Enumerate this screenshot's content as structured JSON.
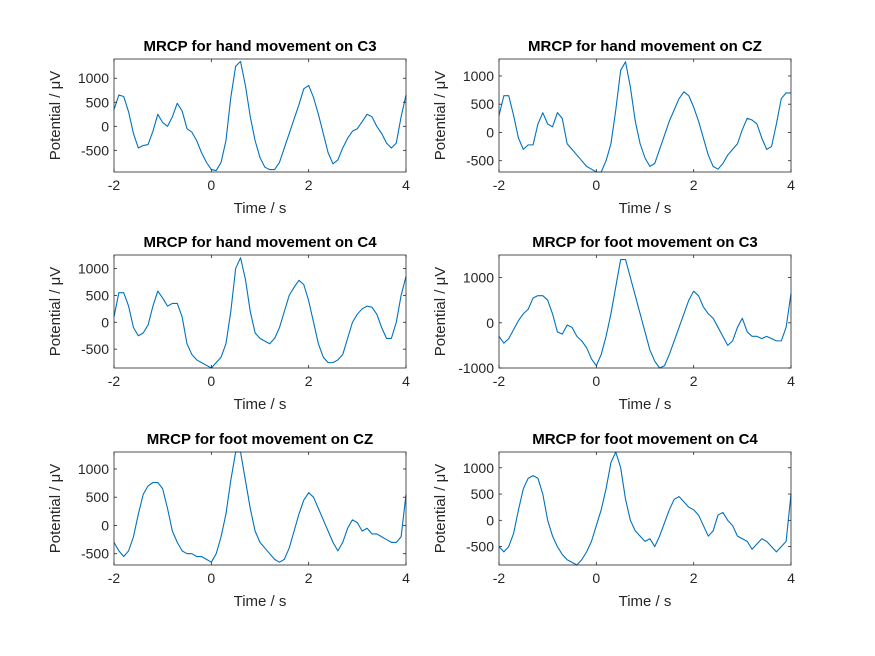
{
  "figure": {
    "background": "#ffffff",
    "line_color": "#0072bd",
    "axis_color": "#262626"
  },
  "chart_data": [
    {
      "type": "line",
      "title": "MRCP for hand movement on C3",
      "xlabel": "Time / s",
      "ylabel": "Potential / μV",
      "xlim": [
        -2,
        4
      ],
      "ylim": [
        -950,
        1400
      ],
      "xticks": [
        -2,
        0,
        2,
        4
      ],
      "yticks": [
        -500,
        0,
        500,
        1000
      ],
      "series": [
        {
          "x": [
            -2,
            -1.9,
            -1.8,
            -1.7,
            -1.6,
            -1.5,
            -1.4,
            -1.3,
            -1.2,
            -1.1,
            -1.0,
            -0.9,
            -0.8,
            -0.7,
            -0.6,
            -0.5,
            -0.4,
            -0.3,
            -0.2,
            -0.1,
            0,
            0.1,
            0.2,
            0.3,
            0.4,
            0.5,
            0.6,
            0.7,
            0.8,
            0.9,
            1.0,
            1.1,
            1.2,
            1.3,
            1.4,
            1.5,
            1.6,
            1.7,
            1.8,
            1.9,
            2.0,
            2.1,
            2.2,
            2.3,
            2.4,
            2.5,
            2.6,
            2.7,
            2.8,
            2.9,
            3.0,
            3.1,
            3.2,
            3.3,
            3.4,
            3.5,
            3.6,
            3.7,
            3.8,
            3.9,
            4.0
          ],
          "y": [
            350,
            650,
            620,
            300,
            -150,
            -450,
            -400,
            -380,
            -100,
            250,
            80,
            0,
            200,
            480,
            320,
            -50,
            -120,
            -300,
            -550,
            -750,
            -900,
            -920,
            -750,
            -300,
            600,
            1250,
            1350,
            850,
            200,
            -300,
            -650,
            -850,
            -900,
            -900,
            -750,
            -450,
            -150,
            150,
            450,
            780,
            850,
            600,
            250,
            -150,
            -550,
            -780,
            -700,
            -450,
            -250,
            -100,
            -50,
            100,
            250,
            200,
            0,
            -150,
            -350,
            -450,
            -350,
            200,
            650
          ]
        }
      ]
    },
    {
      "type": "line",
      "title": "MRCP for hand movement on CZ",
      "xlabel": "Time / s",
      "ylabel": "Potential / μV",
      "xlim": [
        -2,
        4
      ],
      "ylim": [
        -700,
        1300
      ],
      "xticks": [
        -2,
        0,
        2,
        4
      ],
      "yticks": [
        -500,
        0,
        500,
        1000
      ],
      "series": [
        {
          "x": [
            -2,
            -1.9,
            -1.8,
            -1.7,
            -1.6,
            -1.5,
            -1.4,
            -1.3,
            -1.2,
            -1.1,
            -1.0,
            -0.9,
            -0.8,
            -0.7,
            -0.6,
            -0.5,
            -0.4,
            -0.3,
            -0.2,
            -0.1,
            0,
            0.1,
            0.2,
            0.3,
            0.4,
            0.5,
            0.6,
            0.7,
            0.8,
            0.9,
            1.0,
            1.1,
            1.2,
            1.3,
            1.4,
            1.5,
            1.6,
            1.7,
            1.8,
            1.9,
            2.0,
            2.1,
            2.2,
            2.3,
            2.4,
            2.5,
            2.6,
            2.7,
            2.8,
            2.9,
            3.0,
            3.1,
            3.2,
            3.3,
            3.4,
            3.5,
            3.6,
            3.7,
            3.8,
            3.9,
            4.0
          ],
          "y": [
            300,
            650,
            650,
            300,
            -100,
            -300,
            -220,
            -220,
            150,
            350,
            150,
            100,
            350,
            250,
            -200,
            -300,
            -400,
            -500,
            -600,
            -650,
            -700,
            -700,
            -500,
            -200,
            400,
            1100,
            1250,
            800,
            200,
            -200,
            -450,
            -600,
            -550,
            -300,
            -50,
            200,
            400,
            600,
            720,
            650,
            450,
            200,
            -100,
            -400,
            -600,
            -650,
            -550,
            -400,
            -300,
            -200,
            50,
            250,
            220,
            150,
            -100,
            -300,
            -250,
            150,
            600,
            700,
            700
          ]
        }
      ]
    },
    {
      "type": "line",
      "title": "MRCP for hand movement on C4",
      "xlabel": "Time / s",
      "ylabel": "Potential / μV",
      "xlim": [
        -2,
        4
      ],
      "ylim": [
        -850,
        1250
      ],
      "xticks": [
        -2,
        0,
        2,
        4
      ],
      "yticks": [
        -500,
        0,
        500,
        1000
      ],
      "series": [
        {
          "x": [
            -2,
            -1.9,
            -1.8,
            -1.7,
            -1.6,
            -1.5,
            -1.4,
            -1.3,
            -1.2,
            -1.1,
            -1.0,
            -0.9,
            -0.8,
            -0.7,
            -0.6,
            -0.5,
            -0.4,
            -0.3,
            -0.2,
            -0.1,
            0,
            0.1,
            0.2,
            0.3,
            0.4,
            0.5,
            0.6,
            0.7,
            0.8,
            0.9,
            1.0,
            1.1,
            1.2,
            1.3,
            1.4,
            1.5,
            1.6,
            1.7,
            1.8,
            1.9,
            2.0,
            2.1,
            2.2,
            2.3,
            2.4,
            2.5,
            2.6,
            2.7,
            2.8,
            2.9,
            3.0,
            3.1,
            3.2,
            3.3,
            3.4,
            3.5,
            3.6,
            3.7,
            3.8,
            3.9,
            4.0
          ],
          "y": [
            100,
            550,
            550,
            300,
            -100,
            -250,
            -200,
            -50,
            300,
            580,
            450,
            300,
            350,
            350,
            100,
            -400,
            -600,
            -700,
            -750,
            -800,
            -850,
            -750,
            -650,
            -400,
            200,
            1000,
            1200,
            800,
            200,
            -200,
            -300,
            -350,
            -400,
            -300,
            -100,
            200,
            500,
            650,
            780,
            700,
            400,
            0,
            -400,
            -650,
            -750,
            -750,
            -700,
            -600,
            -300,
            0,
            150,
            250,
            300,
            280,
            150,
            -100,
            -300,
            -300,
            0,
            500,
            850
          ]
        }
      ]
    },
    {
      "type": "line",
      "title": "MRCP for foot movement on C3",
      "xlabel": "Time / s",
      "ylabel": "Potential / μV",
      "xlim": [
        -2,
        4
      ],
      "ylim": [
        -1000,
        1500
      ],
      "xticks": [
        -2,
        0,
        2,
        4
      ],
      "yticks": [
        -1000,
        0,
        1000
      ],
      "series": [
        {
          "x": [
            -2,
            -1.9,
            -1.8,
            -1.7,
            -1.6,
            -1.5,
            -1.4,
            -1.3,
            -1.2,
            -1.1,
            -1.0,
            -0.9,
            -0.8,
            -0.7,
            -0.6,
            -0.5,
            -0.4,
            -0.3,
            -0.2,
            -0.1,
            0,
            0.1,
            0.2,
            0.3,
            0.4,
            0.5,
            0.6,
            0.7,
            0.8,
            0.9,
            1.0,
            1.1,
            1.2,
            1.3,
            1.4,
            1.5,
            1.6,
            1.7,
            1.8,
            1.9,
            2.0,
            2.1,
            2.2,
            2.3,
            2.4,
            2.5,
            2.6,
            2.7,
            2.8,
            2.9,
            3.0,
            3.1,
            3.2,
            3.3,
            3.4,
            3.5,
            3.6,
            3.7,
            3.8,
            3.9,
            4.0
          ],
          "y": [
            -300,
            -450,
            -350,
            -150,
            50,
            200,
            300,
            550,
            600,
            600,
            500,
            200,
            -200,
            -250,
            -50,
            -100,
            -300,
            -400,
            -550,
            -800,
            -950,
            -700,
            -300,
            200,
            800,
            1400,
            1400,
            1000,
            600,
            200,
            -200,
            -600,
            -850,
            -1000,
            -950,
            -700,
            -400,
            -100,
            200,
            500,
            700,
            600,
            350,
            200,
            100,
            -100,
            -300,
            -500,
            -400,
            -100,
            100,
            -200,
            -300,
            -300,
            -350,
            -300,
            -350,
            -400,
            -400,
            -100,
            650
          ]
        }
      ]
    },
    {
      "type": "line",
      "title": "MRCP for foot movement on CZ",
      "xlabel": "Time / s",
      "ylabel": "Potential / μV",
      "xlim": [
        -2,
        4
      ],
      "ylim": [
        -700,
        1300
      ],
      "xticks": [
        -2,
        0,
        2,
        4
      ],
      "yticks": [
        -500,
        0,
        500,
        1000
      ],
      "series": [
        {
          "x": [
            -2,
            -1.9,
            -1.8,
            -1.7,
            -1.6,
            -1.5,
            -1.4,
            -1.3,
            -1.2,
            -1.1,
            -1.0,
            -0.9,
            -0.8,
            -0.7,
            -0.6,
            -0.5,
            -0.4,
            -0.3,
            -0.2,
            -0.1,
            0,
            0.1,
            0.2,
            0.3,
            0.4,
            0.5,
            0.6,
            0.7,
            0.8,
            0.9,
            1.0,
            1.1,
            1.2,
            1.3,
            1.4,
            1.5,
            1.6,
            1.7,
            1.8,
            1.9,
            2.0,
            2.1,
            2.2,
            2.3,
            2.4,
            2.5,
            2.6,
            2.7,
            2.8,
            2.9,
            3.0,
            3.1,
            3.2,
            3.3,
            3.4,
            3.5,
            3.6,
            3.7,
            3.8,
            3.9,
            4.0
          ],
          "y": [
            -300,
            -450,
            -550,
            -450,
            -200,
            200,
            550,
            700,
            760,
            760,
            650,
            300,
            -100,
            -300,
            -450,
            -500,
            -500,
            -550,
            -550,
            -600,
            -650,
            -500,
            -200,
            200,
            800,
            1300,
            1300,
            800,
            300,
            -100,
            -300,
            -400,
            -500,
            -600,
            -650,
            -600,
            -400,
            -100,
            200,
            450,
            580,
            500,
            300,
            100,
            -100,
            -300,
            -450,
            -300,
            -50,
            100,
            50,
            -100,
            -50,
            -150,
            -150,
            -200,
            -250,
            -300,
            -300,
            -200,
            550
          ]
        }
      ]
    },
    {
      "type": "line",
      "title": "MRCP for foot movement on C4",
      "xlabel": "Time / s",
      "ylabel": "Potential / μV",
      "xlim": [
        -2,
        4
      ],
      "ylim": [
        -850,
        1300
      ],
      "xticks": [
        -2,
        0,
        2,
        4
      ],
      "yticks": [
        -500,
        0,
        500,
        1000
      ],
      "series": [
        {
          "x": [
            -2,
            -1.9,
            -1.8,
            -1.7,
            -1.6,
            -1.5,
            -1.4,
            -1.3,
            -1.2,
            -1.1,
            -1.0,
            -0.9,
            -0.8,
            -0.7,
            -0.6,
            -0.5,
            -0.4,
            -0.3,
            -0.2,
            -0.1,
            0,
            0.1,
            0.2,
            0.3,
            0.4,
            0.5,
            0.6,
            0.7,
            0.8,
            0.9,
            1.0,
            1.1,
            1.2,
            1.3,
            1.4,
            1.5,
            1.6,
            1.7,
            1.8,
            1.9,
            2.0,
            2.1,
            2.2,
            2.3,
            2.4,
            2.5,
            2.6,
            2.7,
            2.8,
            2.9,
            3.0,
            3.1,
            3.2,
            3.3,
            3.4,
            3.5,
            3.6,
            3.7,
            3.8,
            3.9,
            4.0
          ],
          "y": [
            -500,
            -600,
            -500,
            -250,
            200,
            600,
            800,
            850,
            800,
            500,
            0,
            -300,
            -500,
            -650,
            -750,
            -800,
            -850,
            -750,
            -600,
            -400,
            -100,
            200,
            600,
            1100,
            1300,
            1000,
            400,
            0,
            -200,
            -300,
            -400,
            -350,
            -500,
            -300,
            -50,
            200,
            400,
            450,
            350,
            250,
            200,
            100,
            -100,
            -300,
            -200,
            100,
            150,
            0,
            -100,
            -300,
            -350,
            -400,
            -550,
            -450,
            -350,
            -400,
            -500,
            -600,
            -500,
            -400,
            500
          ]
        }
      ]
    }
  ]
}
